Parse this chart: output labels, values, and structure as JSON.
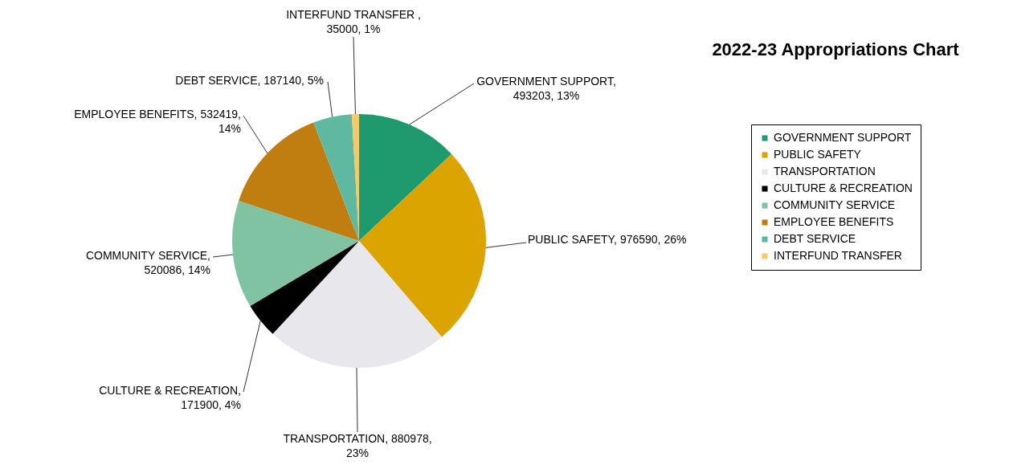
{
  "chart_data": {
    "type": "pie",
    "title": "2022-23 Appropriations Chart",
    "categories": [
      "GOVERNMENT SUPPORT",
      "PUBLIC SAFETY",
      "TRANSPORTATION",
      "CULTURE & RECREATION",
      "COMMUNITY SERVICE",
      "EMPLOYEE BENEFITS",
      "DEBT SERVICE",
      "INTERFUND TRANSFER"
    ],
    "values": [
      493203,
      976590,
      880978,
      171900,
      520086,
      532419,
      187140,
      35000
    ],
    "colors": [
      "#1f9a6e",
      "#dca400",
      "#e8e8ec",
      "#000000",
      "#7fc3a3",
      "#c07d10",
      "#5fb8a0",
      "#f5c86a"
    ],
    "value_labels": [
      "GOVERNMENT SUPPORT,\n493203, 13%",
      "PUBLIC SAFETY, 976590, 26%",
      "TRANSPORTATION, 880978,\n23%",
      "CULTURE & RECREATION,\n171900, 4%",
      "COMMUNITY SERVICE,\n520086, 14%",
      "EMPLOYEE BENEFITS, 532419,\n14%",
      "DEBT SERVICE, 187140, 5%",
      "INTERFUND TRANSFER ,\n35000, 1%"
    ],
    "legend": "right"
  }
}
